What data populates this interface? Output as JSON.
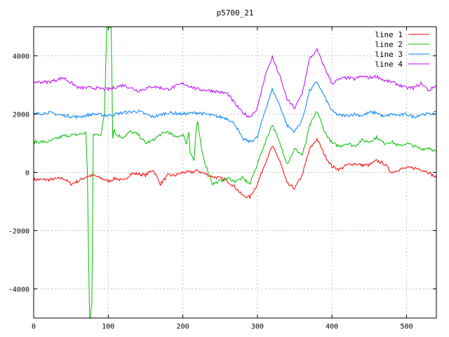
{
  "chart_data": {
    "type": "line",
    "title": "p5700_21",
    "xlabel": "",
    "ylabel": "",
    "xlim": [
      0,
      540
    ],
    "ylim": [
      -5000,
      5000
    ],
    "xticks": [
      0,
      100,
      200,
      300,
      400,
      500
    ],
    "yticks": [
      -4000,
      -2000,
      0,
      2000,
      4000
    ],
    "grid": true,
    "legend_position": "top-right",
    "series": [
      {
        "name": "line 1",
        "color": "#ff0000",
        "x": [
          0,
          20,
          40,
          50,
          60,
          70,
          80,
          90,
          100,
          110,
          120,
          130,
          140,
          150,
          160,
          170,
          180,
          190,
          200,
          210,
          220,
          230,
          240,
          250,
          260,
          270,
          280,
          290,
          300,
          310,
          320,
          330,
          340,
          350,
          360,
          370,
          380,
          390,
          400,
          410,
          420,
          430,
          440,
          450,
          460,
          470,
          480,
          490,
          500,
          510,
          520,
          530,
          540
        ],
        "y": [
          -250,
          -250,
          -200,
          -400,
          -300,
          -150,
          -100,
          -200,
          -300,
          -200,
          -300,
          -50,
          -50,
          -100,
          100,
          -400,
          -100,
          -100,
          0,
          0,
          50,
          -50,
          -150,
          -200,
          -300,
          -500,
          -800,
          -850,
          -400,
          300,
          900,
          400,
          -400,
          -550,
          -100,
          800,
          1150,
          600,
          200,
          100,
          250,
          300,
          250,
          250,
          400,
          300,
          0,
          100,
          150,
          150,
          100,
          0,
          -200
        ]
      },
      {
        "name": "line 2",
        "color": "#00c000",
        "x": [
          0,
          20,
          40,
          60,
          70,
          72,
          74,
          75,
          76,
          78,
          80,
          90,
          95,
          98,
          100,
          102,
          104,
          106,
          108,
          110,
          120,
          130,
          140,
          150,
          160,
          170,
          180,
          190,
          200,
          205,
          208,
          210,
          215,
          218,
          220,
          225,
          230,
          240,
          250,
          260,
          270,
          280,
          290,
          300,
          310,
          320,
          330,
          340,
          350,
          360,
          365,
          370,
          380,
          390,
          400,
          410,
          420,
          430,
          440,
          450,
          460,
          470,
          480,
          490,
          500,
          510,
          520,
          530,
          540
        ],
        "y": [
          1050,
          1050,
          1250,
          1300,
          1350,
          0,
          -3500,
          -5000,
          -5000,
          -4500,
          1300,
          1300,
          2000,
          5000,
          5000,
          5000,
          5000,
          1200,
          1500,
          1300,
          1200,
          1400,
          1300,
          1000,
          1100,
          1300,
          1400,
          1200,
          1300,
          1000,
          1400,
          700,
          400,
          1500,
          1700,
          800,
          300,
          -400,
          -300,
          -200,
          -300,
          -200,
          -400,
          300,
          1000,
          1650,
          1000,
          300,
          800,
          600,
          1000,
          1600,
          2100,
          1400,
          1000,
          900,
          1000,
          900,
          1100,
          1050,
          1200,
          1000,
          1050,
          900,
          1000,
          900,
          800,
          850,
          700
        ]
      },
      {
        "name": "line 3",
        "color": "#0080ff",
        "x": [
          0,
          20,
          40,
          60,
          80,
          100,
          120,
          140,
          160,
          180,
          200,
          220,
          240,
          260,
          270,
          280,
          290,
          300,
          310,
          320,
          330,
          340,
          350,
          360,
          370,
          380,
          390,
          400,
          410,
          420,
          430,
          440,
          450,
          460,
          470,
          480,
          490,
          500,
          510,
          520,
          530,
          540
        ],
        "y": [
          2000,
          2050,
          1950,
          1900,
          2000,
          1950,
          2050,
          2100,
          1900,
          2050,
          2000,
          2050,
          1950,
          1850,
          1650,
          1150,
          1050,
          1200,
          2100,
          2850,
          2300,
          1600,
          1400,
          1800,
          2800,
          3100,
          2600,
          2100,
          1950,
          1950,
          2000,
          1950,
          2050,
          2050,
          1900,
          2000,
          1950,
          2000,
          1900,
          2000,
          2000,
          2050
        ]
      },
      {
        "name": "line 4",
        "color": "#c000ff",
        "x": [
          0,
          20,
          40,
          60,
          80,
          100,
          120,
          140,
          160,
          180,
          200,
          220,
          240,
          260,
          270,
          280,
          290,
          300,
          310,
          320,
          330,
          340,
          350,
          360,
          370,
          380,
          390,
          400,
          410,
          420,
          430,
          440,
          450,
          460,
          470,
          480,
          490,
          500,
          510,
          520,
          530,
          540
        ],
        "y": [
          3100,
          3100,
          3250,
          2900,
          2900,
          2850,
          3000,
          2800,
          2950,
          2850,
          3050,
          2850,
          2800,
          2700,
          2350,
          2050,
          1900,
          2200,
          3300,
          3950,
          3300,
          2500,
          2200,
          2700,
          3900,
          4200,
          3600,
          3050,
          3200,
          3250,
          3200,
          3300,
          3250,
          3300,
          3150,
          3100,
          3000,
          2900,
          2900,
          3050,
          2800,
          3000
        ]
      }
    ]
  }
}
